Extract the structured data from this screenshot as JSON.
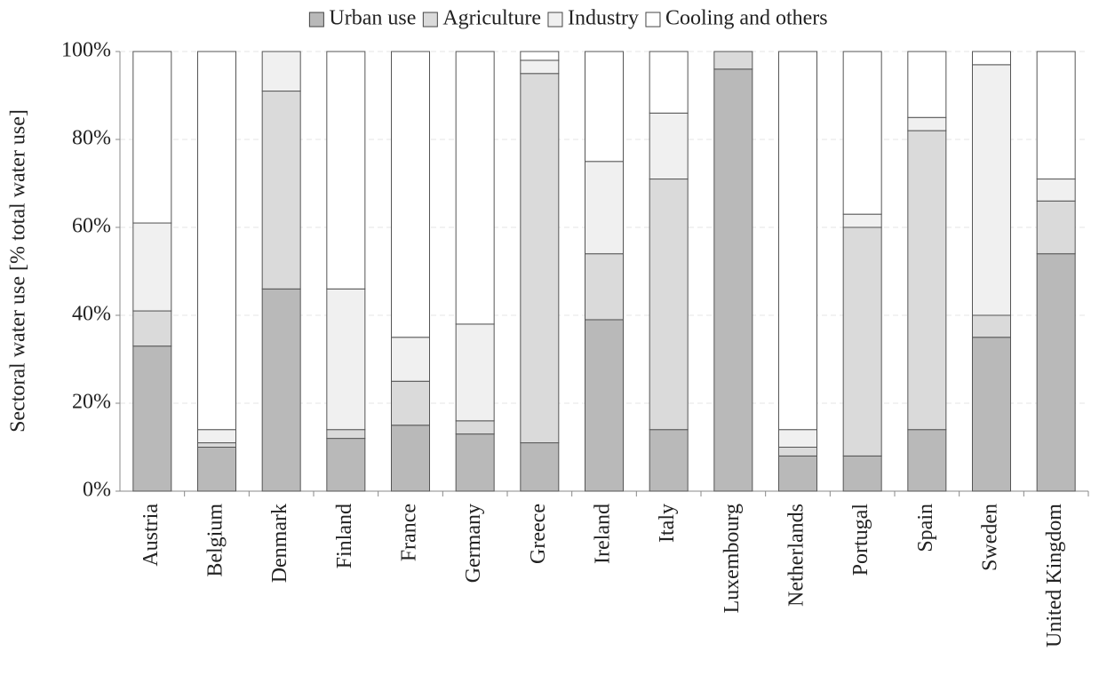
{
  "chart_data": {
    "type": "stacked_bar",
    "ylabel": "Sectoral water use [% total water use]",
    "categories": [
      "Austria",
      "Belgium",
      "Denmark",
      "Finland",
      "France",
      "Germany",
      "Greece",
      "Ireland",
      "Italy",
      "Luxembourg",
      "Netherlands",
      "Portugal",
      "Spain",
      "Sweden",
      "United Kingdom"
    ],
    "series": [
      {
        "name": "Urban use",
        "color": "#b9b9b9",
        "values": [
          33,
          10,
          46,
          12,
          15,
          13,
          11,
          39,
          14,
          96,
          8,
          8,
          14,
          35,
          54
        ]
      },
      {
        "name": "Agriculture",
        "color": "#dadada",
        "values": [
          8,
          1,
          45,
          2,
          10,
          3,
          84,
          15,
          57,
          4,
          2,
          52,
          68,
          5,
          12
        ]
      },
      {
        "name": "Industry",
        "color": "#f0f0f0",
        "values": [
          20,
          3,
          9,
          32,
          10,
          22,
          3,
          21,
          15,
          0,
          4,
          3,
          3,
          57,
          5
        ]
      },
      {
        "name": "Cooling and others",
        "color": "#ffffff",
        "values": [
          39,
          86,
          0,
          54,
          65,
          62,
          2,
          25,
          14,
          0,
          86,
          37,
          15,
          3,
          29
        ]
      }
    ],
    "ylim": [
      0,
      100
    ],
    "yticks": [
      {
        "value": 0,
        "label": "0%"
      },
      {
        "value": 20,
        "label": "20%"
      },
      {
        "value": 40,
        "label": "40%"
      },
      {
        "value": 60,
        "label": "60%"
      },
      {
        "value": 80,
        "label": "80%"
      },
      {
        "value": 100,
        "label": "100%"
      }
    ],
    "grid": true
  }
}
